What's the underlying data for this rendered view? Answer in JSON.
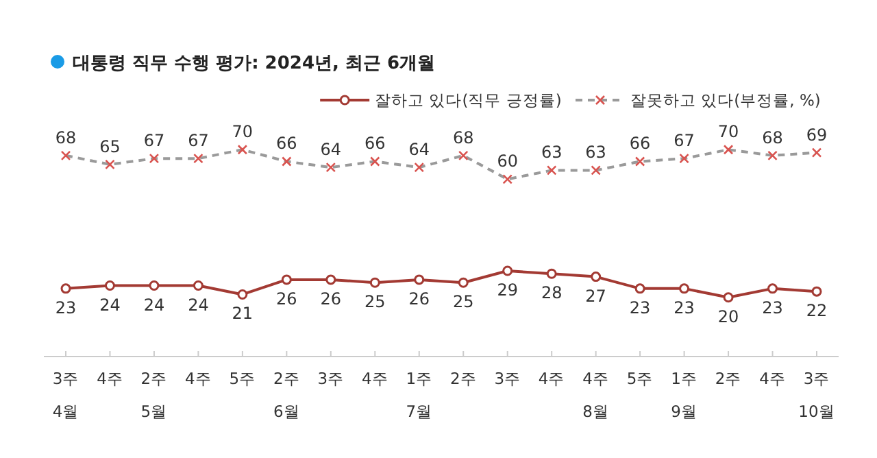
{
  "chart_data": {
    "type": "line",
    "title": "대통령 직무 수행 평가: 2024년, 최근 6개월",
    "categories": [
      "3주\n4월",
      "4주",
      "2주\n5월",
      "4주",
      "5주",
      "2주\n6월",
      "3주",
      "4주",
      "1주\n7월",
      "2주",
      "3주",
      "4주",
      "4주\n8월",
      "5주",
      "1주\n9월",
      "2주",
      "4주",
      "3주\n10월"
    ],
    "series": [
      {
        "name": "잘하고 있다(직무 긍정률)",
        "color": "#a33a33",
        "marker": "circle",
        "line_style": "solid",
        "values": [
          23,
          24,
          24,
          24,
          21,
          26,
          26,
          25,
          26,
          25,
          29,
          28,
          27,
          23,
          23,
          20,
          23,
          22
        ]
      },
      {
        "name": "잘못하고 있다(부정률, %)",
        "color": "#9a9a9a",
        "marker": "cross",
        "line_style": "dashed",
        "values": [
          68,
          65,
          67,
          67,
          70,
          66,
          64,
          66,
          64,
          68,
          60,
          63,
          63,
          66,
          67,
          70,
          68,
          69
        ]
      }
    ],
    "tick_labels": "x",
    "data_labels": true,
    "legend": "top right"
  }
}
